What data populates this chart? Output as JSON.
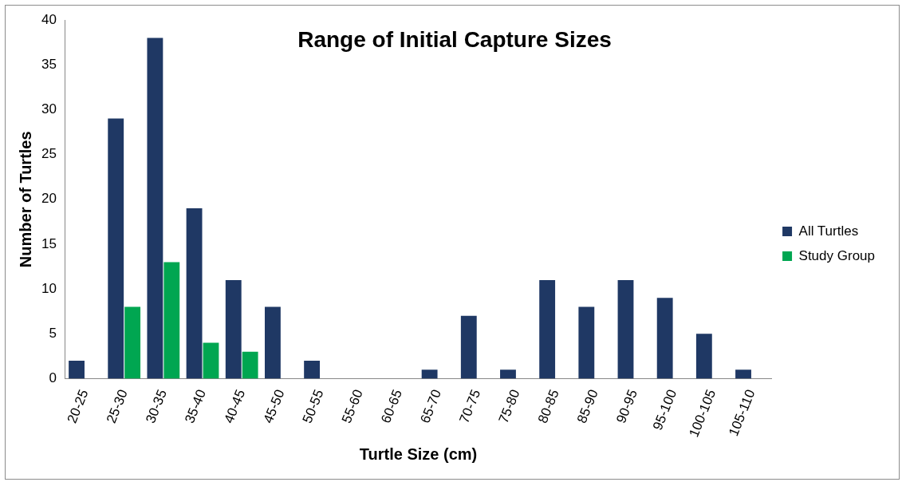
{
  "chart_data": {
    "type": "bar",
    "title": "Range of Initial Capture Sizes",
    "xlabel": "Turtle Size (cm)",
    "ylabel": "Number of Turtles",
    "categories": [
      "20-25",
      "25-30",
      "30-35",
      "35-40",
      "40-45",
      "45-50",
      "50-55",
      "55-60",
      "60-65",
      "65-70",
      "70-75",
      "75-80",
      "80-85",
      "85-90",
      "90-95",
      "95-100",
      "100-105",
      "105-110"
    ],
    "series": [
      {
        "name": "All Turtles",
        "color": "#1f3864",
        "values": [
          2,
          29,
          38,
          19,
          11,
          8,
          2,
          0,
          0,
          1,
          7,
          1,
          11,
          8,
          11,
          9,
          5,
          1
        ]
      },
      {
        "name": "Study Group",
        "color": "#00a651",
        "values": [
          0,
          8,
          13,
          4,
          3,
          0,
          0,
          0,
          0,
          0,
          0,
          0,
          0,
          0,
          0,
          0,
          0,
          0
        ]
      }
    ],
    "ylim": [
      0,
      40
    ],
    "yticks": [
      0,
      5,
      10,
      15,
      20,
      25,
      30,
      35,
      40
    ],
    "grid": false,
    "legend": "right"
  }
}
